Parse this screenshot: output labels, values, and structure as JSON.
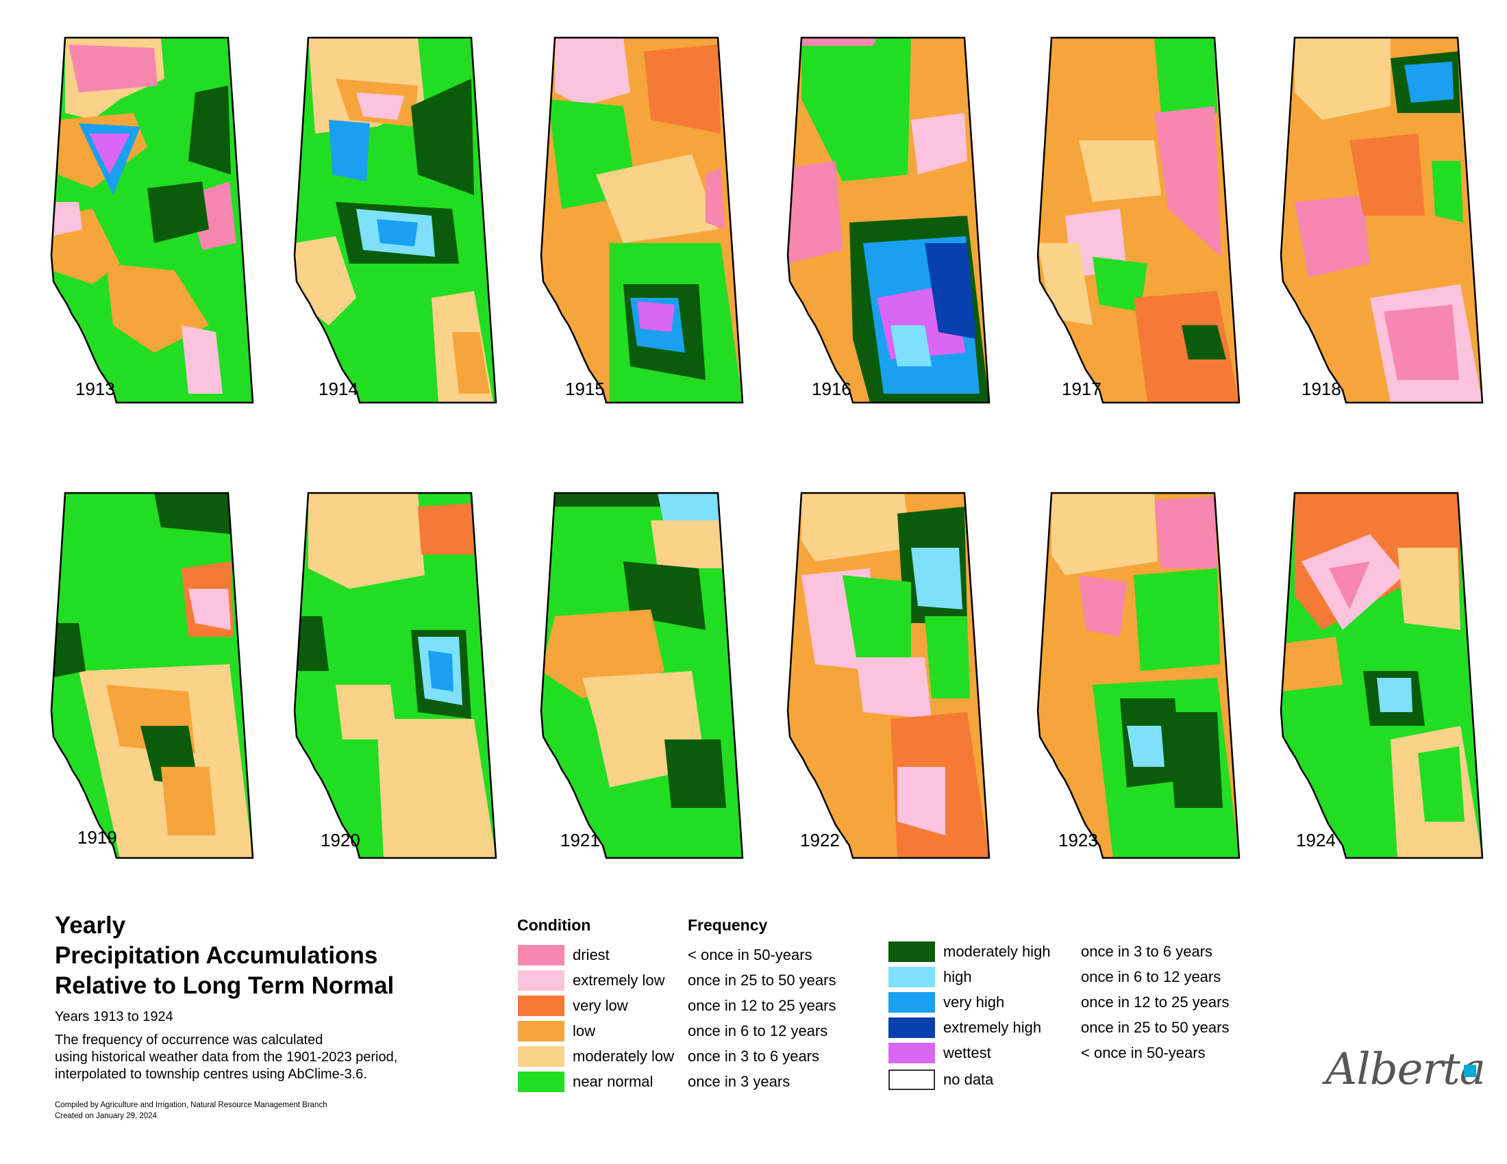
{
  "maps": [
    {
      "year": "1913"
    },
    {
      "year": "1914"
    },
    {
      "year": "1915"
    },
    {
      "year": "1916"
    },
    {
      "year": "1917"
    },
    {
      "year": "1918"
    },
    {
      "year": "1919"
    },
    {
      "year": "1920"
    },
    {
      "year": "1921"
    },
    {
      "year": "1922"
    },
    {
      "year": "1923"
    },
    {
      "year": "1924"
    }
  ],
  "legend": {
    "title_lines": [
      "Yearly",
      "Precipitation Accumulations",
      "Relative to Long Term Normal"
    ],
    "years": "Years 1913 to 1924",
    "description": [
      "The frequency of occurrence was calculated",
      "using historical weather data from the 1901-2023 period,",
      "interpolated to township centres using AbClime-3.6."
    ],
    "credit": "Compiled by Agriculture and Irrigation, Natural Resource Management Branch",
    "created": "Created on January 29, 2024",
    "condition_header": "Condition",
    "frequency_header": "Frequency",
    "dry_classes": [
      {
        "condition": "driest",
        "frequency": "< once in 50-years",
        "color": "#f587b0"
      },
      {
        "condition": "extremely low",
        "frequency": "once in 25 to 50 years",
        "color": "#fcc3dc"
      },
      {
        "condition": "very low",
        "frequency": "once in 12 to 25 years",
        "color": "#f57a35"
      },
      {
        "condition": "low",
        "frequency": "once in 6 to 12 years",
        "color": "#f5a53a"
      },
      {
        "condition": "moderately low",
        "frequency": "once in 3 to 6 years",
        "color": "#fbd28a"
      },
      {
        "condition": "near normal",
        "frequency": "once in 3 years",
        "color": "#22dd22"
      }
    ],
    "wet_classes": [
      {
        "condition": "moderately high",
        "frequency": "once in 3 to 6 years",
        "color": "#0a5c0a"
      },
      {
        "condition": "high",
        "frequency": "once in 6 to 12 years",
        "color": "#7fe0fa"
      },
      {
        "condition": "very high",
        "frequency": "once in 12 to 25 years",
        "color": "#1aa0f0"
      },
      {
        "condition": "extremely high",
        "frequency": "once in 25 to 50 years",
        "color": "#0840b0"
      },
      {
        "condition": "wettest",
        "frequency": "< once in 50-years",
        "color": "#d966f2"
      },
      {
        "condition": "no data",
        "frequency": "",
        "color": "#ffffff"
      }
    ]
  },
  "logo": {
    "text": "Alberta",
    "color": "#55565a",
    "accent": "#00aad2"
  }
}
